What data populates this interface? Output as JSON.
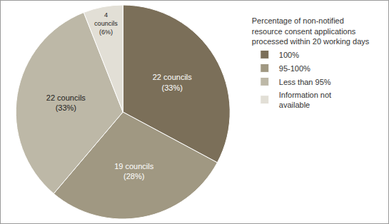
{
  "chart_data": {
    "type": "pie",
    "legend_title": "Percentage of non-notified\nresource consent applications\nprocessed within 20 working days",
    "categories": [
      "100%",
      "95-100%",
      "Less than 95%",
      "Information not\navailable"
    ],
    "values": [
      22,
      19,
      22,
      4
    ],
    "value_labels": [
      "22 councils\n(33%)",
      "19 councils\n(28%)",
      "22 councils\n(33%)",
      "4\ncouncils\n(6%)"
    ],
    "colors": [
      "#7b6f59",
      "#a09882",
      "#bdb8a7",
      "#e2dfd6"
    ],
    "data_labels": true,
    "legend": "right"
  }
}
